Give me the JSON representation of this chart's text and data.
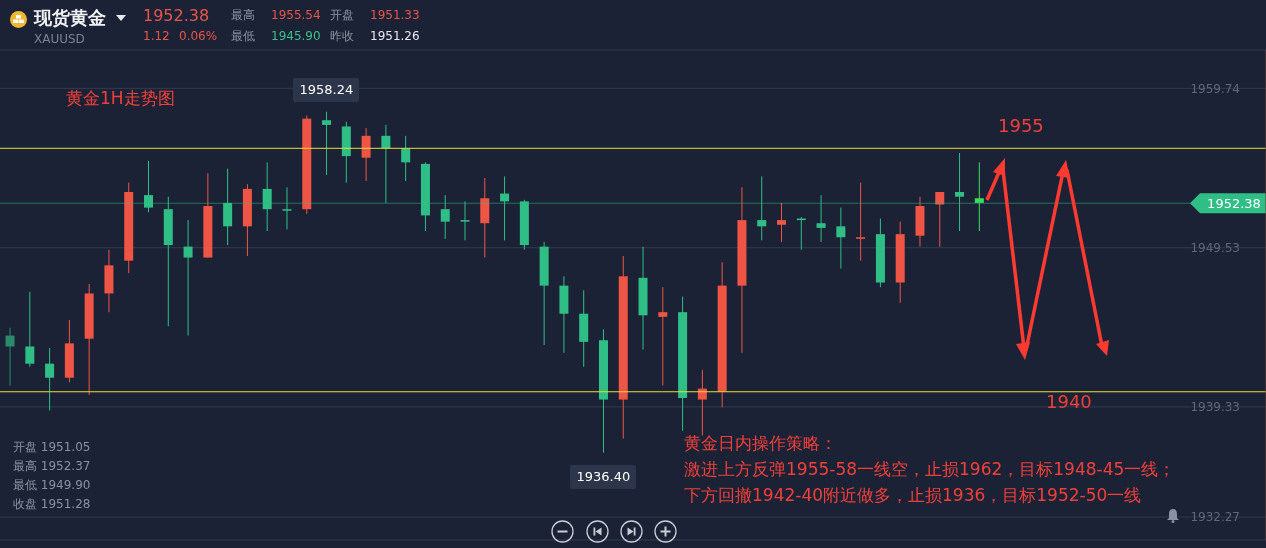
{
  "chart_data": {
    "type": "candlestick",
    "title": "现货黄金",
    "subtitle": "XAUUSD",
    "categories": [
      null,
      null,
      null,
      null,
      null,
      null,
      null,
      null,
      null,
      null,
      null,
      null,
      null,
      null,
      null,
      null,
      null,
      null,
      null,
      null,
      null,
      null,
      null,
      null,
      null,
      null,
      null,
      null,
      null,
      null,
      null,
      null,
      null,
      null,
      null,
      null,
      null,
      null,
      null,
      null,
      null,
      null,
      null,
      null,
      null,
      null,
      null,
      null,
      null,
      null,
      null,
      null,
      null,
      null,
      null,
      null,
      null,
      null,
      null,
      null,
      null,
      null,
      null,
      null
    ],
    "ohlc": [
      [
        1943.9,
        1944.4,
        1940.7,
        1943.2
      ],
      [
        1943.2,
        1946.7,
        1941.9,
        1942.1
      ],
      [
        1942.1,
        1943.1,
        1939.1,
        1941.2
      ],
      [
        1941.2,
        1944.9,
        1940.9,
        1943.4
      ],
      [
        1943.7,
        1947.2,
        1940.1,
        1946.6
      ],
      [
        1946.6,
        1949.4,
        1945.4,
        1948.4
      ],
      [
        1948.7,
        1953.7,
        1947.9,
        1953.1
      ],
      [
        1952.9,
        1955.1,
        1951.8,
        1952.1
      ],
      [
        1952.0,
        1952.8,
        1944.5,
        1949.7
      ],
      [
        1949.6,
        1951.3,
        1943.9,
        1948.9
      ],
      [
        1948.9,
        1954.3,
        1948.9,
        1952.2
      ],
      [
        1952.4,
        1954.6,
        1949.7,
        1950.9
      ],
      [
        1950.9,
        1953.6,
        1949.0,
        1953.3
      ],
      [
        1953.3,
        1955.0,
        1950.6,
        1952.0
      ],
      [
        1952.0,
        1953.4,
        1950.7,
        1951.9
      ],
      [
        1952.0,
        1958.0,
        1951.7,
        1957.8
      ],
      [
        1957.7,
        1958.24,
        1954.2,
        1957.4
      ],
      [
        1957.3,
        1957.6,
        1953.7,
        1955.4
      ],
      [
        1955.3,
        1957.2,
        1953.8,
        1956.7
      ],
      [
        1956.7,
        1957.4,
        1952.4,
        1955.9
      ],
      [
        1955.9,
        1956.7,
        1953.8,
        1955.0
      ],
      [
        1954.9,
        1955.0,
        1950.6,
        1951.6
      ],
      [
        1952.0,
        1952.9,
        1950.1,
        1951.2
      ],
      [
        1951.3,
        1952.5,
        1950.0,
        1951.2
      ],
      [
        1951.1,
        1954.0,
        1948.9,
        1952.7
      ],
      [
        1953.0,
        1954.1,
        1950.0,
        1952.5
      ],
      [
        1952.5,
        1952.6,
        1949.4,
        1949.7
      ],
      [
        1949.6,
        1949.9,
        1943.3,
        1947.1
      ],
      [
        1947.1,
        1947.7,
        1942.8,
        1945.3
      ],
      [
        1945.3,
        1946.8,
        1941.9,
        1943.5
      ],
      [
        1943.6,
        1944.3,
        1936.4,
        1939.8
      ],
      [
        1939.8,
        1949.0,
        1937.3,
        1947.7
      ],
      [
        1947.6,
        1949.6,
        1943.0,
        1945.2
      ],
      [
        1945.1,
        1947.0,
        1940.7,
        1945.4
      ],
      [
        1945.4,
        1946.4,
        1937.8,
        1939.9
      ],
      [
        1939.8,
        1941.7,
        1937.5,
        1940.5
      ],
      [
        1940.3,
        1948.6,
        1939.3,
        1947.1
      ],
      [
        1947.1,
        1953.4,
        1942.8,
        1951.3
      ],
      [
        1951.3,
        1954.1,
        1950.0,
        1950.9
      ],
      [
        1951.0,
        1952.4,
        1949.9,
        1951.3
      ],
      [
        1951.4,
        1951.5,
        1949.4,
        1951.3
      ],
      [
        1951.1,
        1952.9,
        1949.9,
        1950.8
      ],
      [
        1950.9,
        1952.1,
        1948.2,
        1950.2
      ],
      [
        1950.1,
        1953.7,
        1948.7,
        1950.2
      ],
      [
        1950.4,
        1951.4,
        1947.0,
        1947.3
      ],
      [
        1947.3,
        1951.2,
        1946.0,
        1950.4
      ],
      [
        1950.3,
        1952.8,
        1949.6,
        1952.2
      ],
      [
        1952.3,
        1953.1,
        1949.6,
        1953.1
      ],
      [
        1953.1,
        1955.6,
        1950.6,
        1952.8
      ],
      [
        1952.7,
        1955.0,
        1950.6,
        1952.4
      ],
      null,
      null,
      null,
      null,
      null,
      null,
      null,
      null,
      null,
      null,
      null,
      null,
      null,
      null
    ],
    "colors": [
      "#2a8a6a",
      "#2fbf86",
      "#2fbf86",
      "#ee5545",
      "#ee5545",
      "#ee5545",
      "#ee5545",
      "#2fbf86",
      "#2fbf86",
      "#2fbf86",
      "#ee5545",
      "#2fbf86",
      "#ee5545",
      "#2fbf86",
      "#2fbf86",
      "#ee5545",
      "#2fbf86",
      "#2fbf86",
      "#ee5545",
      "#2fbf86",
      "#2fbf86",
      "#2fbf86",
      "#2fbf86",
      "#2fbf86",
      "#ee5545",
      "#2fbf86",
      "#2fbf86",
      "#2fbf86",
      "#2fbf86",
      "#2fbf86",
      "#2fbf86",
      "#ee5545",
      "#2fbf86",
      "#ee5545",
      "#2fbf86",
      "#ee5545",
      "#ee5545",
      "#ee5545",
      "#2fbf86",
      "#ee5545",
      "#2fbf86",
      "#2fbf86",
      "#2fbf86",
      "#ee5545",
      "#2fbf86",
      "#ee5545",
      "#ee5545",
      "#ee5545",
      "#2fbf86",
      "#3ddc5a",
      null,
      null,
      null,
      null,
      null,
      null,
      null,
      null,
      null,
      null,
      null,
      null,
      null,
      null
    ],
    "ylim": [
      1930.8,
      1962.2
    ],
    "yticks": [
      1932.27,
      1939.33,
      1949.53,
      1959.74
    ],
    "grid": "y",
    "ref_lines": [
      {
        "axis": "y",
        "value": 1955.9,
        "color": "#e6df3c"
      },
      {
        "axis": "y",
        "value": 1940.3,
        "color": "#e6df3c"
      },
      {
        "axis": "y",
        "value": 1952.38,
        "label": "1952.38",
        "color": "#2fbf86"
      }
    ],
    "annotations": [
      "黄金1H走势图",
      "1955",
      "1940",
      "黄金日内操作策略：",
      "激进上方反弹1955-58一线空，止损1962，目标1948-45一线；",
      "下方回撤1942-40附近做多，止损1936，目标1952-50一线",
      "1952.38",
      "1.12",
      "0.06%",
      "最高",
      "1955.54",
      "开盘",
      "1951.33",
      "最低",
      "1945.90",
      "昨收",
      "1951.26",
      "开盘 1951.05",
      "最高 1952.37",
      "最低 1949.90",
      "收盘 1951.28",
      {
        "text": "1958.24",
        "y": 1958.24
      },
      {
        "text": "1936.40",
        "y": 1936.4
      }
    ]
  }
}
